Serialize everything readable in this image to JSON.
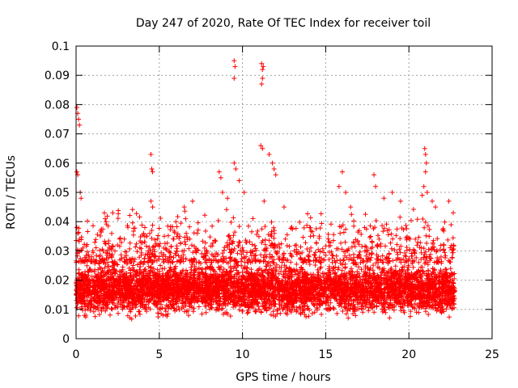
{
  "chart_data": {
    "type": "scatter",
    "title": "Day 247 of 2020, Rate Of TEC Index for receiver toil",
    "xlabel": "GPS time / hours",
    "ylabel": "ROTI / TECUs",
    "xlim": [
      0,
      25
    ],
    "ylim": [
      0,
      0.1
    ],
    "xticks": [
      0,
      5,
      10,
      15,
      20,
      25
    ],
    "xtick_labels": [
      "0",
      "5",
      "10",
      "15",
      "20",
      "25"
    ],
    "yticks": [
      0,
      0.01,
      0.02,
      0.03,
      0.04,
      0.05,
      0.06,
      0.07,
      0.08,
      0.09,
      0.1
    ],
    "ytick_labels": [
      "0",
      "0.01",
      "0.02",
      "0.03",
      "0.04",
      "0.05",
      "0.06",
      "0.07",
      "0.08",
      "0.09",
      "0.1"
    ],
    "grid": true,
    "marker": "+",
    "color": "#ff0000",
    "time_range_hours": [
      0,
      22.75
    ],
    "density_profile": {
      "typical_range": [
        0.006,
        0.026
      ],
      "median": 0.015
    },
    "points": [
      [
        0.05,
        0.079
      ],
      [
        0.1,
        0.077
      ],
      [
        0.15,
        0.075
      ],
      [
        0.2,
        0.073
      ],
      [
        0.05,
        0.057
      ],
      [
        0.1,
        0.056
      ],
      [
        0.25,
        0.05
      ],
      [
        0.3,
        0.048
      ],
      [
        0.05,
        0.038
      ],
      [
        0.1,
        0.036
      ],
      [
        0.2,
        0.034
      ],
      [
        1.7,
        0.043
      ],
      [
        1.75,
        0.041
      ],
      [
        1.8,
        0.04
      ],
      [
        4.5,
        0.063
      ],
      [
        4.55,
        0.058
      ],
      [
        4.6,
        0.057
      ],
      [
        4.5,
        0.047
      ],
      [
        4.6,
        0.045
      ],
      [
        5.3,
        0.035
      ],
      [
        6.0,
        0.04
      ],
      [
        6.5,
        0.045
      ],
      [
        7.0,
        0.047
      ],
      [
        8.6,
        0.057
      ],
      [
        8.7,
        0.055
      ],
      [
        8.8,
        0.05
      ],
      [
        9.1,
        0.048
      ],
      [
        9.5,
        0.095
      ],
      [
        9.55,
        0.093
      ],
      [
        9.5,
        0.089
      ],
      [
        9.5,
        0.06
      ],
      [
        9.6,
        0.058
      ],
      [
        9.8,
        0.054
      ],
      [
        10.1,
        0.05
      ],
      [
        11.15,
        0.094
      ],
      [
        11.2,
        0.092
      ],
      [
        11.25,
        0.093
      ],
      [
        11.2,
        0.089
      ],
      [
        11.15,
        0.087
      ],
      [
        11.1,
        0.066
      ],
      [
        11.2,
        0.065
      ],
      [
        11.6,
        0.063
      ],
      [
        11.8,
        0.06
      ],
      [
        11.9,
        0.058
      ],
      [
        12.0,
        0.056
      ],
      [
        11.3,
        0.047
      ],
      [
        12.5,
        0.045
      ],
      [
        15.8,
        0.052
      ],
      [
        16.0,
        0.057
      ],
      [
        16.2,
        0.05
      ],
      [
        16.5,
        0.045
      ],
      [
        17.9,
        0.056
      ],
      [
        18.0,
        0.052
      ],
      [
        18.5,
        0.048
      ],
      [
        19.0,
        0.05
      ],
      [
        19.5,
        0.047
      ],
      [
        20.95,
        0.065
      ],
      [
        21.0,
        0.063
      ],
      [
        21.05,
        0.06
      ],
      [
        21.0,
        0.057
      ],
      [
        20.9,
        0.052
      ],
      [
        21.1,
        0.05
      ],
      [
        20.8,
        0.049
      ],
      [
        21.4,
        0.047
      ],
      [
        21.6,
        0.045
      ],
      [
        22.4,
        0.047
      ]
    ]
  }
}
